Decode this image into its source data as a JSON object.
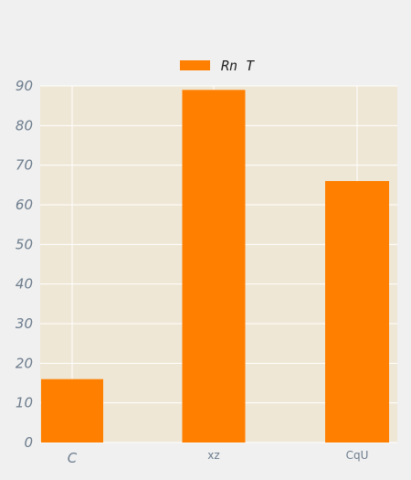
{
  "chart_data": {
    "type": "bar",
    "title": "",
    "xlabel": "",
    "ylabel": "",
    "categories": [
      "C",
      "xz",
      "CqU"
    ],
    "series": [
      {
        "name": "Rn T",
        "values": [
          16,
          89,
          66
        ]
      }
    ],
    "ylim": [
      0,
      90
    ],
    "yticks": [
      0,
      10,
      20,
      30,
      40,
      50,
      60,
      70,
      80,
      90
    ],
    "grid": true,
    "legend_position": "top-center",
    "colors": {
      "bar": "#ff7f00",
      "plot_background": "#efe7d6",
      "page_background": "#f0f0f0",
      "grid": "#ffffff",
      "tick_text": "#6b7b8c"
    }
  }
}
